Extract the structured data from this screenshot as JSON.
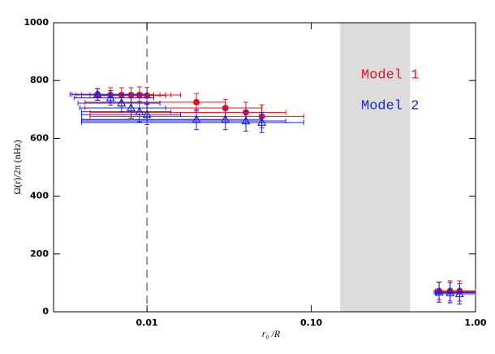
{
  "chart_data": {
    "type": "scatter",
    "x_label": "r₀ /R",
    "y_label": "Ω(r)/2π (nHz)",
    "xscale": "log",
    "xlim": [
      0.0027,
      1
    ],
    "ylim": [
      0,
      1000
    ],
    "xticks": [
      {
        "value": 0.01,
        "label": "0.01"
      },
      {
        "value": 0.1,
        "label": "0.10"
      },
      {
        "value": 1,
        "label": "1.00"
      }
    ],
    "yticks": [
      0,
      200,
      400,
      600,
      800,
      1000
    ],
    "shaded_region": [
      0.15,
      0.4
    ],
    "vline": 0.01,
    "series": [
      {
        "name": "Model 1",
        "color": "#e8101a",
        "marker": "circle",
        "x": [
          0.005,
          0.006,
          0.007,
          0.008,
          0.009,
          0.01,
          0.02,
          0.03,
          0.04,
          0.05,
          0.6,
          0.7,
          0.8
        ],
        "values": [
          752,
          750,
          750,
          750,
          750,
          748,
          725,
          705,
          690,
          676,
          72,
          72,
          72
        ],
        "yerr": [
          20,
          25,
          25,
          25,
          28,
          28,
          30,
          30,
          35,
          40,
          30,
          35,
          35
        ],
        "xmin": [
          0.0035,
          0.0037,
          0.004,
          0.004,
          0.0045,
          0.005,
          0.0042,
          0.0042,
          0.0045,
          0.0045,
          0.57,
          0.58,
          0.6
        ],
        "xmax": [
          0.011,
          0.012,
          0.013,
          0.014,
          0.016,
          0.013,
          0.03,
          0.05,
          0.07,
          0.09,
          1,
          1,
          1
        ]
      },
      {
        "name": "Model 2",
        "color": "#1a22e0",
        "marker": "triangle",
        "x": [
          0.005,
          0.006,
          0.007,
          0.008,
          0.009,
          0.01,
          0.02,
          0.03,
          0.04,
          0.05,
          0.6,
          0.7,
          0.8
        ],
        "values": [
          752,
          740,
          722,
          705,
          692,
          682,
          665,
          665,
          660,
          655,
          68,
          66,
          62
        ],
        "yerr": [
          20,
          25,
          30,
          35,
          35,
          35,
          35,
          35,
          35,
          35,
          35,
          35,
          35
        ],
        "xmin": [
          0.0034,
          0.0036,
          0.0038,
          0.0039,
          0.004,
          0.004,
          0.004,
          0.004,
          0.004,
          0.004,
          0.56,
          0.57,
          0.58
        ],
        "xmax": [
          0.01,
          0.011,
          0.012,
          0.013,
          0.014,
          0.016,
          0.03,
          0.05,
          0.07,
          0.09,
          1,
          1,
          1
        ]
      }
    ]
  }
}
